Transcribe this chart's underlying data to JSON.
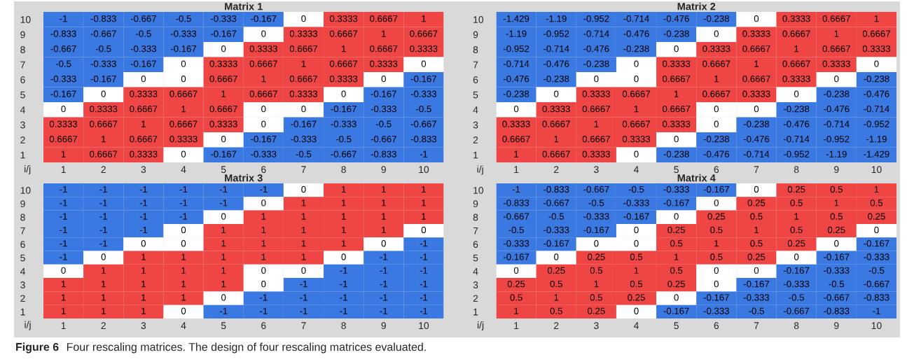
{
  "chart_data": [
    {
      "type": "heatmap",
      "title": "Matrix 1",
      "xlabel": "i/j",
      "categories": [
        "1",
        "2",
        "3",
        "4",
        "5",
        "6",
        "7",
        "8",
        "9",
        "10"
      ],
      "y_categories": [
        "10",
        "9",
        "8",
        "7",
        "6",
        "5",
        "4",
        "3",
        "2",
        "1"
      ],
      "colors": [
        "#3a78e2",
        "#ffffff",
        "#f04545"
      ],
      "data_labels": true,
      "cells": [
        [
          -1,
          -0.833,
          -0.667,
          -0.5,
          -0.333,
          -0.167,
          0,
          0.3333,
          0.6667,
          1
        ],
        [
          -0.833,
          -0.667,
          -0.5,
          -0.333,
          -0.167,
          0,
          0.3333,
          0.6667,
          1,
          0.6667
        ],
        [
          -0.667,
          -0.5,
          -0.333,
          -0.167,
          0,
          0.3333,
          0.6667,
          1,
          0.6667,
          0.3333
        ],
        [
          -0.5,
          -0.333,
          -0.167,
          0,
          0.3333,
          0.6667,
          1,
          0.6667,
          0.3333,
          0
        ],
        [
          -0.333,
          -0.167,
          0,
          0,
          0.6667,
          1,
          0.6667,
          0.3333,
          0,
          -0.167
        ],
        [
          -0.167,
          0,
          0.3333,
          0.6667,
          1,
          0.6667,
          0.3333,
          0,
          -0.167,
          -0.333
        ],
        [
          0,
          0.3333,
          0.6667,
          1,
          0.6667,
          0,
          0,
          -0.167,
          -0.333,
          -0.5
        ],
        [
          0.3333,
          0.6667,
          1,
          0.6667,
          0.3333,
          0,
          -0.167,
          -0.333,
          -0.5,
          -0.667
        ],
        [
          0.6667,
          1,
          0.6667,
          0.3333,
          0,
          -0.167,
          -0.333,
          -0.5,
          -0.667,
          -0.833
        ],
        [
          1,
          0.6667,
          0.3333,
          0,
          -0.167,
          -0.333,
          -0.5,
          -0.667,
          -0.833,
          -1
        ]
      ],
      "annotations": [
        "Figure 6",
        "Four rescaling matrices. The design of four rescaling matrices evaluated."
      ]
    },
    {
      "type": "heatmap",
      "title": "Matrix 3",
      "xlabel": "i/j",
      "categories": [
        "1",
        "2",
        "3",
        "4",
        "5",
        "6",
        "7",
        "8",
        "9",
        "10"
      ],
      "y_categories": [
        "10",
        "9",
        "8",
        "7",
        "6",
        "5",
        "4",
        "3",
        "2",
        "1"
      ],
      "colors": [
        "#3a78e2",
        "#ffffff",
        "#f04545"
      ],
      "data_labels": true,
      "cells": [
        [
          -1,
          -1,
          -1,
          -1,
          -1,
          -1,
          0,
          1,
          1,
          1
        ],
        [
          -1,
          -1,
          -1,
          -1,
          -1,
          0,
          1,
          1,
          1,
          1
        ],
        [
          -1,
          -1,
          -1,
          -1,
          0,
          1,
          1,
          1,
          1,
          1
        ],
        [
          -1,
          -1,
          -1,
          0,
          1,
          1,
          1,
          1,
          1,
          0
        ],
        [
          -1,
          -1,
          0,
          0,
          1,
          1,
          1,
          1,
          0,
          -1
        ],
        [
          -1,
          0,
          1,
          1,
          1,
          1,
          1,
          0,
          -1,
          -1
        ],
        [
          0,
          1,
          1,
          1,
          1,
          0,
          0,
          -1,
          -1,
          -1
        ],
        [
          1,
          1,
          1,
          1,
          1,
          0,
          -1,
          -1,
          -1,
          -1
        ],
        [
          1,
          1,
          1,
          1,
          0,
          -1,
          -1,
          -1,
          -1,
          -1
        ],
        [
          1,
          1,
          1,
          0,
          -1,
          -1,
          -1,
          -1,
          -1,
          -1
        ]
      ]
    },
    {
      "type": "heatmap",
      "title": "Matrix 2",
      "xlabel": "i/j",
      "categories": [
        "1",
        "2",
        "3",
        "4",
        "5",
        "6",
        "7",
        "8",
        "9",
        "10"
      ],
      "y_categories": [
        "10",
        "9",
        "8",
        "7",
        "6",
        "5",
        "4",
        "3",
        "2",
        "1"
      ],
      "colors": [
        "#3a78e2",
        "#ffffff",
        "#f04545"
      ],
      "data_labels": true,
      "cells": [
        [
          -1.429,
          -1.19,
          -0.952,
          -0.714,
          -0.476,
          -0.238,
          0,
          0.3333,
          0.6667,
          1
        ],
        [
          -1.19,
          -0.952,
          -0.714,
          -0.476,
          -0.238,
          0,
          0.3333,
          0.6667,
          1,
          0.6667
        ],
        [
          -0.952,
          -0.714,
          -0.476,
          -0.238,
          0,
          0.3333,
          0.6667,
          1,
          0.6667,
          0.3333
        ],
        [
          -0.714,
          -0.476,
          -0.238,
          0,
          0.3333,
          0.6667,
          1,
          0.6667,
          0.3333,
          0
        ],
        [
          -0.476,
          -0.238,
          0,
          0,
          0.6667,
          1,
          0.6667,
          0.3333,
          0,
          -0.238
        ],
        [
          -0.238,
          0,
          0.3333,
          0.6667,
          1,
          0.6667,
          0.3333,
          0,
          -0.238,
          -0.476
        ],
        [
          0,
          0.3333,
          0.6667,
          1,
          0.6667,
          0,
          0,
          -0.238,
          -0.476,
          -0.714
        ],
        [
          0.3333,
          0.6667,
          1,
          0.6667,
          0.3333,
          0,
          -0.238,
          -0.476,
          -0.714,
          -0.952
        ],
        [
          0.6667,
          1,
          0.6667,
          0.3333,
          0,
          -0.238,
          -0.476,
          -0.714,
          -0.952,
          -1.19
        ],
        [
          1,
          0.6667,
          0.3333,
          0,
          -0.238,
          -0.476,
          -0.714,
          -0.952,
          -1.19,
          -1.429
        ]
      ]
    },
    {
      "type": "heatmap",
      "title": "Matrix 4",
      "xlabel": "i/j",
      "categories": [
        "1",
        "2",
        "3",
        "4",
        "5",
        "6",
        "7",
        "8",
        "9",
        "10"
      ],
      "y_categories": [
        "10",
        "9",
        "8",
        "7",
        "6",
        "5",
        "4",
        "3",
        "2",
        "1"
      ],
      "colors": [
        "#3a78e2",
        "#ffffff",
        "#f04545"
      ],
      "data_labels": true,
      "cells": [
        [
          -1,
          -0.833,
          -0.667,
          -0.5,
          -0.333,
          -0.167,
          0,
          0.25,
          0.5,
          1
        ],
        [
          -0.833,
          -0.667,
          -0.5,
          -0.333,
          -0.167,
          0,
          0.25,
          0.5,
          1,
          0.5
        ],
        [
          -0.667,
          -0.5,
          -0.333,
          -0.167,
          0,
          0.25,
          0.5,
          1,
          0.5,
          0.25
        ],
        [
          -0.5,
          -0.333,
          -0.167,
          0,
          0.25,
          0.5,
          1,
          0.5,
          0.25,
          0
        ],
        [
          -0.333,
          -0.167,
          0,
          0,
          0.5,
          1,
          0.5,
          0.25,
          0,
          -0.167
        ],
        [
          -0.167,
          0,
          0.25,
          0.5,
          1,
          0.5,
          0.25,
          0,
          -0.167,
          -0.333
        ],
        [
          0,
          0.25,
          0.5,
          1,
          0.5,
          0,
          0,
          -0.167,
          -0.333,
          -0.5
        ],
        [
          0.25,
          0.5,
          1,
          0.5,
          0.25,
          0,
          -0.167,
          -0.333,
          -0.5,
          -0.667
        ],
        [
          0.5,
          1,
          0.5,
          0.25,
          0,
          -0.167,
          -0.333,
          -0.5,
          -0.667,
          -0.833
        ],
        [
          1,
          0.5,
          0.25,
          0,
          -0.167,
          -0.333,
          -0.5,
          -0.667,
          -0.833,
          -1
        ]
      ]
    }
  ]
}
